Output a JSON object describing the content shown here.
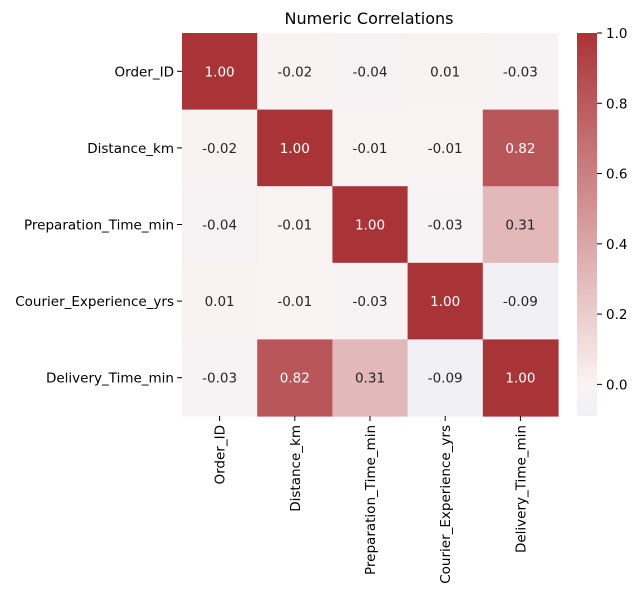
{
  "chart_data": {
    "type": "heatmap",
    "title": "Numeric Correlations",
    "row_labels": [
      "Order_ID",
      "Distance_km",
      "Preparation_Time_min",
      "Courier_Experience_yrs",
      "Delivery_Time_min"
    ],
    "col_labels": [
      "Order_ID",
      "Distance_km",
      "Preparation_Time_min",
      "Courier_Experience_yrs",
      "Delivery_Time_min"
    ],
    "values": [
      [
        1.0,
        -0.02,
        -0.04,
        0.01,
        -0.03
      ],
      [
        -0.02,
        1.0,
        -0.01,
        -0.01,
        0.82
      ],
      [
        -0.04,
        -0.01,
        1.0,
        -0.03,
        0.31
      ],
      [
        0.01,
        -0.01,
        -0.03,
        1.0,
        -0.09
      ],
      [
        -0.03,
        0.82,
        0.31,
        -0.09,
        1.0
      ]
    ],
    "value_format": "0.00",
    "colorbar": {
      "range": [
        -0.09,
        1.0
      ],
      "ticks": [
        0.0,
        0.2,
        0.4,
        0.6,
        0.8,
        1.0
      ],
      "tick_labels": [
        "0.0",
        "0.2",
        "0.4",
        "0.6",
        "0.8",
        "1.0"
      ],
      "colormap": "vlag",
      "low_color": "#f0f0f5",
      "mid_color": "#fbf3f3",
      "high_color": "#a93437"
    },
    "grid": false,
    "legend": "colorbar-right"
  }
}
